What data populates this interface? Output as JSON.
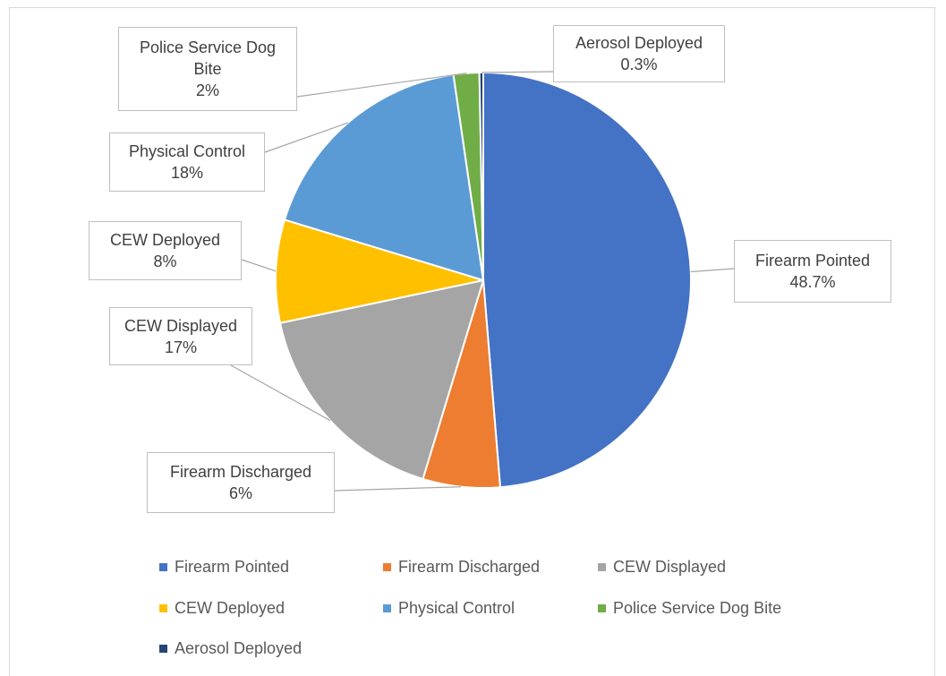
{
  "chart_data": {
    "type": "pie",
    "categories": [
      "Firearm Pointed",
      "Firearm Discharged",
      "CEW Displayed",
      "CEW Deployed",
      "Physical Control",
      "Police Service Dog Bite",
      "Aerosol Deployed"
    ],
    "values": [
      48.7,
      6,
      17,
      8,
      18,
      2,
      0.3
    ],
    "value_labels": [
      "48.7%",
      "6%",
      "17%",
      "8%",
      "18%",
      "2%",
      "0.3%"
    ],
    "colors": [
      "#4472c4",
      "#ed7d31",
      "#a5a5a5",
      "#ffc000",
      "#5b9bd5",
      "#70ad47",
      "#264478"
    ],
    "legend": "bottom"
  }
}
